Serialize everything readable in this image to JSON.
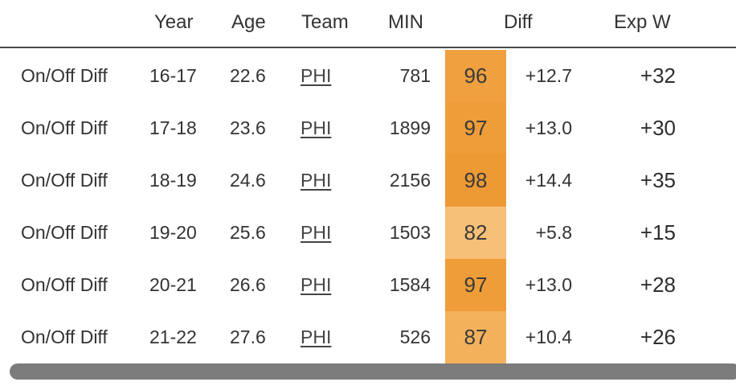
{
  "table": {
    "headers": {
      "stat": "",
      "year": "Year",
      "age": "Age",
      "team": "Team",
      "min": "MIN",
      "diff": "Diff",
      "expw": "Exp W"
    },
    "rows": [
      {
        "stat": "On/Off Diff",
        "year": "16-17",
        "age": "22.6",
        "team": "PHI",
        "min": "781",
        "pct": "96",
        "diff": "+12.7",
        "expw": "+32",
        "pct_color": "#f0a03f"
      },
      {
        "stat": "On/Off Diff",
        "year": "17-18",
        "age": "23.6",
        "team": "PHI",
        "min": "1899",
        "pct": "97",
        "diff": "+13.0",
        "expw": "+30",
        "pct_color": "#ef9d39"
      },
      {
        "stat": "On/Off Diff",
        "year": "18-19",
        "age": "24.6",
        "team": "PHI",
        "min": "2156",
        "pct": "98",
        "diff": "+14.4",
        "expw": "+35",
        "pct_color": "#ee9a34"
      },
      {
        "stat": "On/Off Diff",
        "year": "19-20",
        "age": "25.6",
        "team": "PHI",
        "min": "1503",
        "pct": "82",
        "diff": "+5.8",
        "expw": "+15",
        "pct_color": "#f7c078"
      },
      {
        "stat": "On/Off Diff",
        "year": "20-21",
        "age": "26.6",
        "team": "PHI",
        "min": "1584",
        "pct": "97",
        "diff": "+13.0",
        "expw": "+28",
        "pct_color": "#ef9d39"
      },
      {
        "stat": "On/Off Diff",
        "year": "21-22",
        "age": "27.6",
        "team": "PHI",
        "min": "526",
        "pct": "87",
        "diff": "+10.4",
        "expw": "+26",
        "pct_color": "#f4b15c"
      }
    ]
  },
  "scrollbar": {
    "icon": "horizontal-scrollbar",
    "thumb_color": "#7b7b7b"
  }
}
